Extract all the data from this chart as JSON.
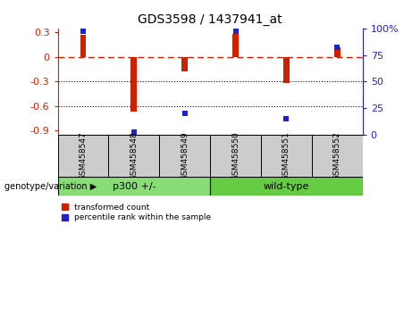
{
  "title": "GDS3598 / 1437941_at",
  "samples": [
    "GSM458547",
    "GSM458548",
    "GSM458549",
    "GSM458550",
    "GSM458551",
    "GSM458552"
  ],
  "red_bars": [
    0.27,
    -0.67,
    -0.18,
    0.28,
    -0.32,
    0.12
  ],
  "blue_percentiles": [
    0.97,
    0.02,
    0.2,
    0.97,
    0.15,
    0.82
  ],
  "ylim": [
    -0.95,
    0.35
  ],
  "yticks": [
    0.3,
    0.0,
    -0.3,
    -0.6,
    -0.9
  ],
  "ytick_labels": [
    "0.3",
    "0",
    "-0.3",
    "-0.6",
    "-0.9"
  ],
  "right_yticks": [
    1.0,
    0.75,
    0.5,
    0.25,
    0.0
  ],
  "right_ytick_labels": [
    "100%",
    "75",
    "50",
    "25",
    "0"
  ],
  "group1_label": "p300 +/-",
  "group2_label": "wild-type",
  "bar_color": "#CC2200",
  "dot_color": "#2222CC",
  "group1_color": "#88DD77",
  "group2_color": "#66CC44",
  "left_axis_color": "#CC2200",
  "right_axis_color": "#2222CC",
  "zero_line_color": "#CC2200",
  "grid_color": "black",
  "bar_width": 0.12,
  "legend_red_label": "transformed count",
  "legend_blue_label": "percentile rank within the sample",
  "dot_size": 4
}
